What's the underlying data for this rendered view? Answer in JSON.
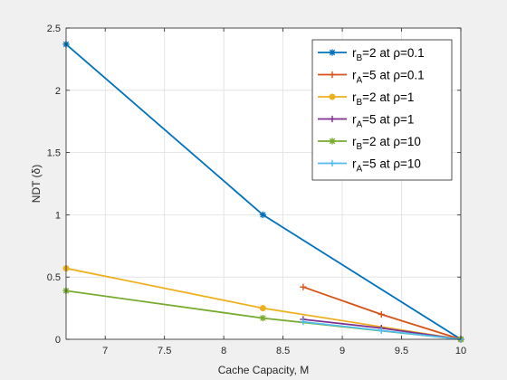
{
  "chart_data": {
    "type": "line",
    "xlabel": "Cache Capacity, M",
    "ylabel": "NDT (δ)",
    "xlim": [
      6.67,
      10
    ],
    "ylim": [
      0,
      2.5
    ],
    "xticks": [
      "7",
      "7.5",
      "8",
      "8.5",
      "9",
      "9.5",
      "10"
    ],
    "yticks": [
      "0",
      "0.5",
      "1",
      "1.5",
      "2",
      "2.5"
    ],
    "grid": true,
    "legend_position": "top-right",
    "series": [
      {
        "name": "r_B=2 at ρ=0.1",
        "legend": {
          "base": "r",
          "sub": "B",
          "rest": "=2 at ρ=0.1"
        },
        "color": "#0072BD",
        "marker": "asterisk",
        "x": [
          6.67,
          8.33,
          10
        ],
        "y": [
          2.37,
          1.0,
          0.0
        ]
      },
      {
        "name": "r_A=5 at ρ=0.1",
        "legend": {
          "base": "r",
          "sub": "A",
          "rest": "=5 at ρ=0.1"
        },
        "color": "#D95319",
        "marker": "plus",
        "x": [
          8.67,
          9.33,
          10
        ],
        "y": [
          0.42,
          0.2,
          0.0
        ]
      },
      {
        "name": "r_B=2 at ρ=1",
        "legend": {
          "base": "r",
          "sub": "B",
          "rest": "=2 at ρ=1"
        },
        "color": "#EDB120",
        "marker": "dot",
        "x": [
          6.67,
          8.33,
          10
        ],
        "y": [
          0.57,
          0.25,
          0.0
        ]
      },
      {
        "name": "r_A=5 at ρ=1",
        "legend": {
          "base": "r",
          "sub": "A",
          "rest": "=5 at ρ=1"
        },
        "color": "#7E2F8E",
        "marker": "plus",
        "x": [
          8.67,
          9.33,
          10
        ],
        "y": [
          0.16,
          0.09,
          0.0
        ]
      },
      {
        "name": "r_B=2 at ρ=10",
        "legend": {
          "base": "r",
          "sub": "B",
          "rest": "=2 at ρ=10"
        },
        "color": "#77AC30",
        "marker": "asterisk",
        "x": [
          6.67,
          8.33,
          10
        ],
        "y": [
          0.39,
          0.17,
          0.0
        ]
      },
      {
        "name": "r_A=5 at ρ=10",
        "legend": {
          "base": "r",
          "sub": "A",
          "rest": "=5 at ρ=10"
        },
        "color": "#4DBEEE",
        "marker": "plus",
        "x": [
          8.67,
          9.33,
          10
        ],
        "y": [
          0.14,
          0.07,
          0.0
        ]
      }
    ]
  }
}
